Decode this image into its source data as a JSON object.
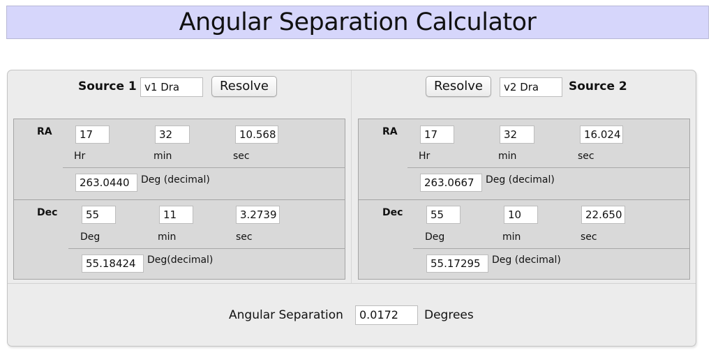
{
  "title": "Angular Separation Calculator",
  "source1": {
    "label": "Source 1",
    "name": "v1 Dra",
    "resolve_label": "Resolve",
    "ra": {
      "label": "RA",
      "hr": "17",
      "min": "32",
      "sec": "10.568",
      "hr_label": "Hr",
      "min_label": "min",
      "sec_label": "sec",
      "decimal": "263.0440",
      "decimal_label": "Deg (decimal)"
    },
    "dec": {
      "label": "Dec",
      "deg": "55",
      "min": "11",
      "sec": "3.2739",
      "deg_label": "Deg",
      "min_label": "min",
      "sec_label": "sec",
      "decimal": "55.18424",
      "decimal_label": "Deg(decimal)"
    }
  },
  "source2": {
    "label": "Source 2",
    "name": "v2 Dra",
    "resolve_label": "Resolve",
    "ra": {
      "label": "RA",
      "hr": "17",
      "min": "32",
      "sec": "16.024",
      "hr_label": "Hr",
      "min_label": "min",
      "sec_label": "sec",
      "decimal": "263.0667",
      "decimal_label": "Deg (decimal)"
    },
    "dec": {
      "label": "Dec",
      "deg": "55",
      "min": "10",
      "sec": "22.650",
      "deg_label": "Deg",
      "min_label": "min",
      "sec_label": "sec",
      "decimal": "55.17295",
      "decimal_label": "Deg (decimal)"
    }
  },
  "result": {
    "label": "Angular Separation",
    "value": "0.0172",
    "unit": "Degrees"
  },
  "colors": {
    "title_background": "#d6d6fb",
    "panel_background": "#ececec",
    "coord_background": "#d9d9d9"
  }
}
